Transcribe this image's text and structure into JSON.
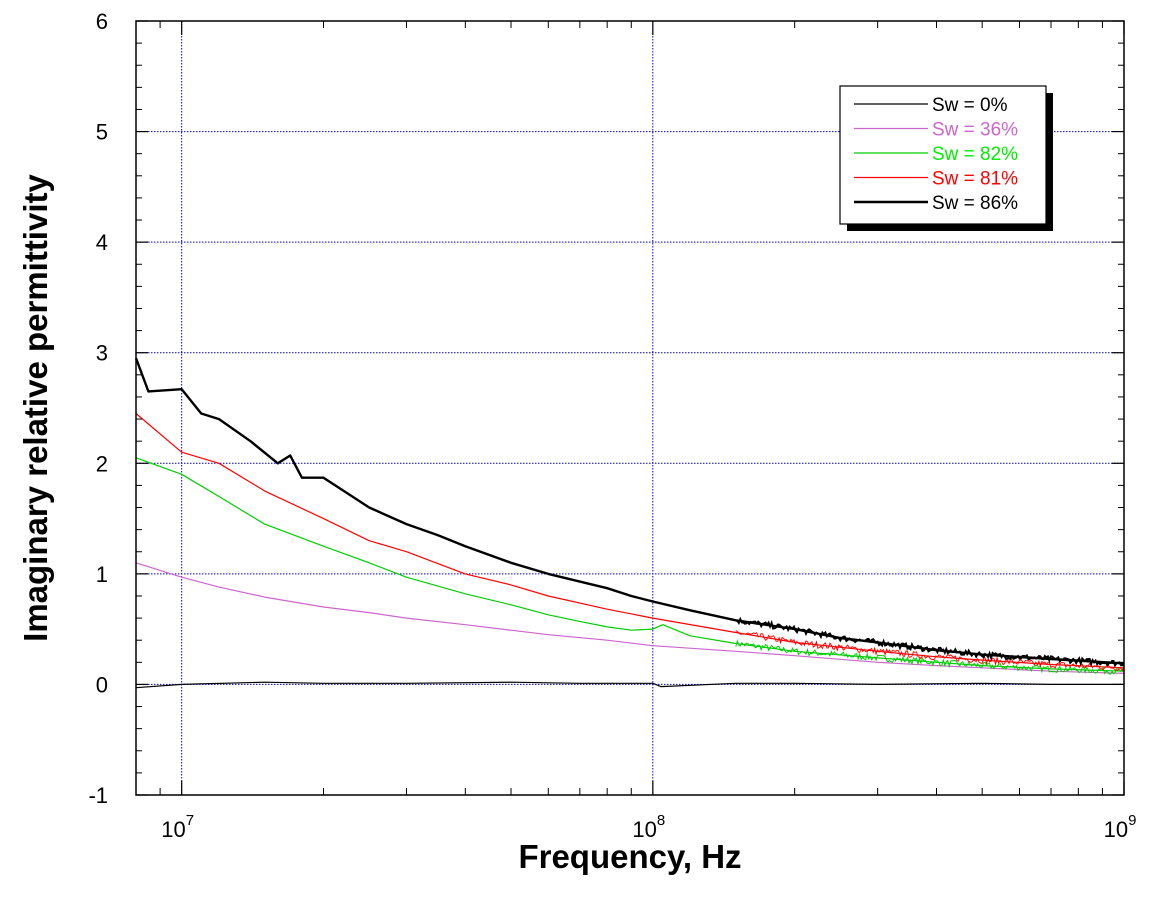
{
  "chart_data": {
    "type": "line",
    "xlabel": "Frequency, Hz",
    "ylabel": "Imaginary relative permittivity",
    "x_scale": "log",
    "xlim": [
      8000000,
      1000000000
    ],
    "ylim": [
      -1,
      6
    ],
    "x_ticks": [
      {
        "value": 10000000,
        "base": "10",
        "exp": "7"
      },
      {
        "value": 100000000,
        "base": "10",
        "exp": "8"
      },
      {
        "value": 1000000000,
        "base": "10",
        "exp": "9"
      }
    ],
    "y_ticks": [
      {
        "value": -1,
        "label": "-1"
      },
      {
        "value": 0,
        "label": "0"
      },
      {
        "value": 1,
        "label": "1"
      },
      {
        "value": 2,
        "label": "2"
      },
      {
        "value": 3,
        "label": "3"
      },
      {
        "value": 4,
        "label": "4"
      },
      {
        "value": 5,
        "label": "5"
      },
      {
        "value": 6,
        "label": "6"
      }
    ],
    "grid": true,
    "grid_color": "#0000cc",
    "legend_position": "top-right",
    "series": [
      {
        "name": "Sw = 0%",
        "color": "#000000",
        "text_color": "#000000",
        "width": 1.2,
        "x": [
          8000000,
          10000000,
          15000000,
          20000000,
          30000000,
          50000000,
          70000000,
          100000000,
          104000000,
          150000000,
          200000000,
          300000000,
          500000000,
          700000000,
          1000000000
        ],
        "y": [
          -0.03,
          0.0,
          0.02,
          0.01,
          0.01,
          0.02,
          0.01,
          0.01,
          -0.02,
          0.01,
          0.01,
          0.0,
          0.01,
          0.0,
          0.0
        ]
      },
      {
        "name": "Sw = 36%",
        "color": "#cc66cc",
        "text_color": "#cc66cc",
        "width": 1.2,
        "x": [
          8000000,
          10000000,
          12000000,
          15000000,
          20000000,
          25000000,
          30000000,
          40000000,
          50000000,
          60000000,
          80000000,
          100000000,
          150000000,
          200000000,
          300000000,
          400000000,
          500000000,
          700000000,
          1000000000
        ],
        "y": [
          1.1,
          0.97,
          0.88,
          0.79,
          0.7,
          0.65,
          0.6,
          0.54,
          0.49,
          0.45,
          0.4,
          0.35,
          0.3,
          0.26,
          0.2,
          0.17,
          0.15,
          0.12,
          0.1
        ]
      },
      {
        "name": "Sw = 82%",
        "color": "#00cc00",
        "text_color": "#00ee00",
        "width": 1.2,
        "x": [
          8000000,
          10000000,
          12000000,
          15000000,
          20000000,
          25000000,
          30000000,
          40000000,
          50000000,
          60000000,
          70000000,
          80000000,
          90000000,
          100000000,
          105000000,
          120000000,
          150000000,
          200000000,
          300000000,
          400000000,
          500000000,
          700000000,
          1000000000
        ],
        "y": [
          2.05,
          1.9,
          1.7,
          1.45,
          1.25,
          1.1,
          0.97,
          0.82,
          0.72,
          0.63,
          0.57,
          0.52,
          0.49,
          0.5,
          0.54,
          0.44,
          0.37,
          0.3,
          0.24,
          0.2,
          0.17,
          0.14,
          0.12
        ]
      },
      {
        "name": "Sw = 81%",
        "color": "#ff0000",
        "text_color": "#ff0000",
        "width": 1.2,
        "x": [
          8000000,
          10000000,
          12000000,
          15000000,
          20000000,
          25000000,
          30000000,
          40000000,
          50000000,
          60000000,
          80000000,
          100000000,
          150000000,
          200000000,
          300000000,
          400000000,
          500000000,
          700000000,
          1000000000
        ],
        "y": [
          2.45,
          2.1,
          2.0,
          1.75,
          1.5,
          1.3,
          1.2,
          1.0,
          0.9,
          0.8,
          0.68,
          0.6,
          0.47,
          0.38,
          0.3,
          0.25,
          0.22,
          0.18,
          0.15
        ]
      },
      {
        "name": "Sw = 86%",
        "color": "#000000",
        "text_color": "#000000",
        "width": 2.4,
        "x": [
          8000000,
          8500000,
          10000000,
          11000000,
          12000000,
          14000000,
          16000000,
          17000000,
          18000000,
          20000000,
          25000000,
          30000000,
          35000000,
          40000000,
          50000000,
          60000000,
          70000000,
          80000000,
          90000000,
          100000000,
          120000000,
          150000000,
          200000000,
          250000000,
          300000000,
          400000000,
          500000000,
          700000000,
          1000000000
        ],
        "y": [
          2.95,
          2.65,
          2.67,
          2.45,
          2.4,
          2.2,
          2.0,
          2.07,
          1.87,
          1.87,
          1.6,
          1.45,
          1.35,
          1.25,
          1.1,
          1.0,
          0.93,
          0.87,
          0.8,
          0.75,
          0.67,
          0.58,
          0.5,
          0.42,
          0.38,
          0.31,
          0.27,
          0.23,
          0.19
        ]
      }
    ]
  }
}
